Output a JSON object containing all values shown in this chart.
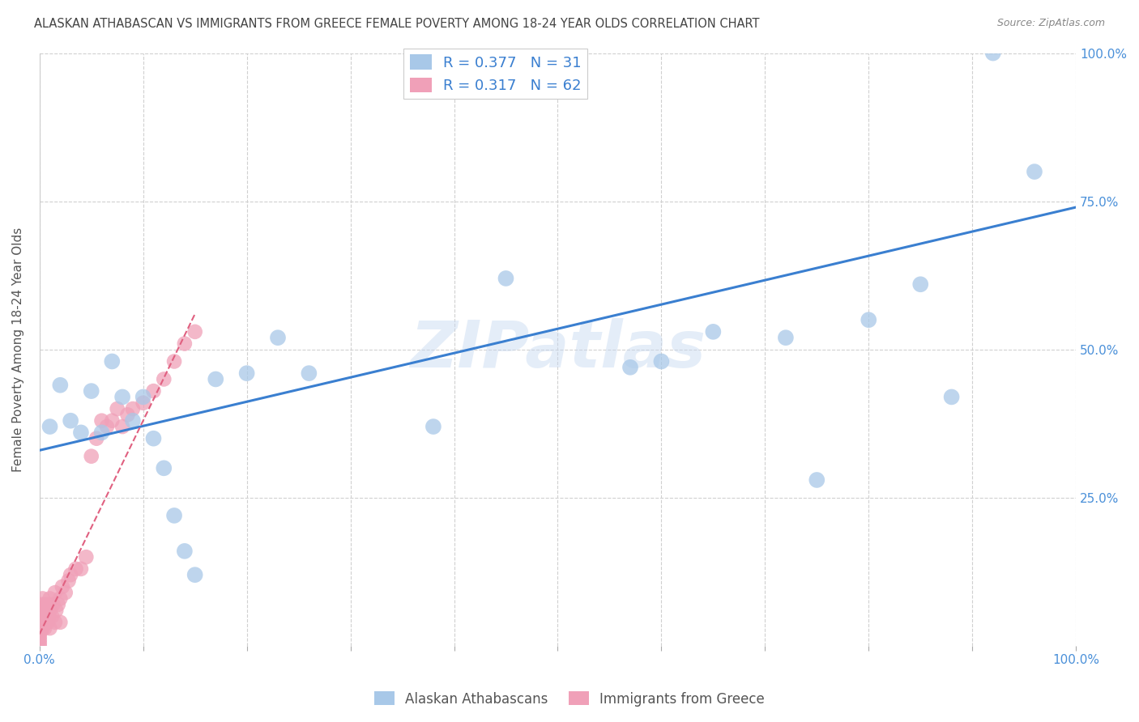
{
  "title": "ALASKAN ATHABASCAN VS IMMIGRANTS FROM GREECE FEMALE POVERTY AMONG 18-24 YEAR OLDS CORRELATION CHART",
  "source": "Source: ZipAtlas.com",
  "ylabel": "Female Poverty Among 18-24 Year Olds",
  "xlim": [
    0,
    1.0
  ],
  "ylim": [
    0,
    1.0
  ],
  "xtick_vals": [
    0,
    0.1,
    0.2,
    0.3,
    0.4,
    0.5,
    0.6,
    0.7,
    0.8,
    0.9,
    1.0
  ],
  "ytick_vals": [
    0.25,
    0.5,
    0.75,
    1.0
  ],
  "ytick_labels": [
    "25.0%",
    "50.0%",
    "75.0%",
    "100.0%"
  ],
  "x_edge_labels": {
    "0.0": "0.0%",
    "1.0": "100.0%"
  },
  "background_color": "#ffffff",
  "grid_color": "#d0d0d0",
  "watermark": "ZIPatlas",
  "blue_color": "#A8C8E8",
  "pink_color": "#F0A0B8",
  "blue_line_color": "#3A7FD0",
  "pink_line_color": "#E06080",
  "legend_text_color": "#3A7FD0",
  "title_color": "#444444",
  "axis_label_color": "#555555",
  "tick_label_color": "#4A90D9",
  "blue_scatter_x": [
    0.01,
    0.02,
    0.03,
    0.04,
    0.05,
    0.06,
    0.07,
    0.08,
    0.09,
    0.1,
    0.11,
    0.12,
    0.13,
    0.14,
    0.15,
    0.17,
    0.2,
    0.23,
    0.26,
    0.38,
    0.45,
    0.57,
    0.6,
    0.65,
    0.72,
    0.75,
    0.8,
    0.85,
    0.88,
    0.92,
    0.96
  ],
  "blue_scatter_y": [
    0.37,
    0.44,
    0.38,
    0.36,
    0.43,
    0.36,
    0.48,
    0.42,
    0.38,
    0.42,
    0.35,
    0.3,
    0.22,
    0.16,
    0.12,
    0.45,
    0.46,
    0.52,
    0.46,
    0.37,
    0.62,
    0.47,
    0.48,
    0.53,
    0.52,
    0.28,
    0.55,
    0.61,
    0.42,
    1.0,
    0.8
  ],
  "pink_scatter_x": [
    0.0,
    0.0,
    0.0,
    0.0,
    0.0,
    0.0,
    0.0,
    0.0,
    0.0,
    0.0,
    0.001,
    0.001,
    0.001,
    0.002,
    0.002,
    0.003,
    0.003,
    0.003,
    0.004,
    0.004,
    0.005,
    0.005,
    0.005,
    0.006,
    0.006,
    0.007,
    0.008,
    0.008,
    0.009,
    0.01,
    0.01,
    0.01,
    0.012,
    0.013,
    0.015,
    0.015,
    0.016,
    0.018,
    0.02,
    0.02,
    0.022,
    0.025,
    0.028,
    0.03,
    0.035,
    0.04,
    0.045,
    0.05,
    0.055,
    0.06,
    0.065,
    0.07,
    0.075,
    0.08,
    0.085,
    0.09,
    0.1,
    0.11,
    0.12,
    0.13,
    0.14,
    0.15
  ],
  "pink_scatter_y": [
    0.0,
    0.005,
    0.01,
    0.015,
    0.02,
    0.025,
    0.03,
    0.04,
    0.05,
    0.06,
    0.03,
    0.04,
    0.05,
    0.03,
    0.07,
    0.03,
    0.05,
    0.08,
    0.04,
    0.06,
    0.03,
    0.05,
    0.07,
    0.04,
    0.06,
    0.05,
    0.04,
    0.07,
    0.05,
    0.03,
    0.06,
    0.08,
    0.05,
    0.07,
    0.04,
    0.09,
    0.06,
    0.07,
    0.04,
    0.08,
    0.1,
    0.09,
    0.11,
    0.12,
    0.13,
    0.13,
    0.15,
    0.32,
    0.35,
    0.38,
    0.37,
    0.38,
    0.4,
    0.37,
    0.39,
    0.4,
    0.41,
    0.43,
    0.45,
    0.48,
    0.51,
    0.53
  ],
  "blue_trend_x": [
    0.0,
    1.0
  ],
  "blue_trend_y": [
    0.33,
    0.74
  ],
  "pink_trend_x": [
    0.0,
    0.15
  ],
  "pink_trend_y": [
    0.02,
    0.56
  ]
}
